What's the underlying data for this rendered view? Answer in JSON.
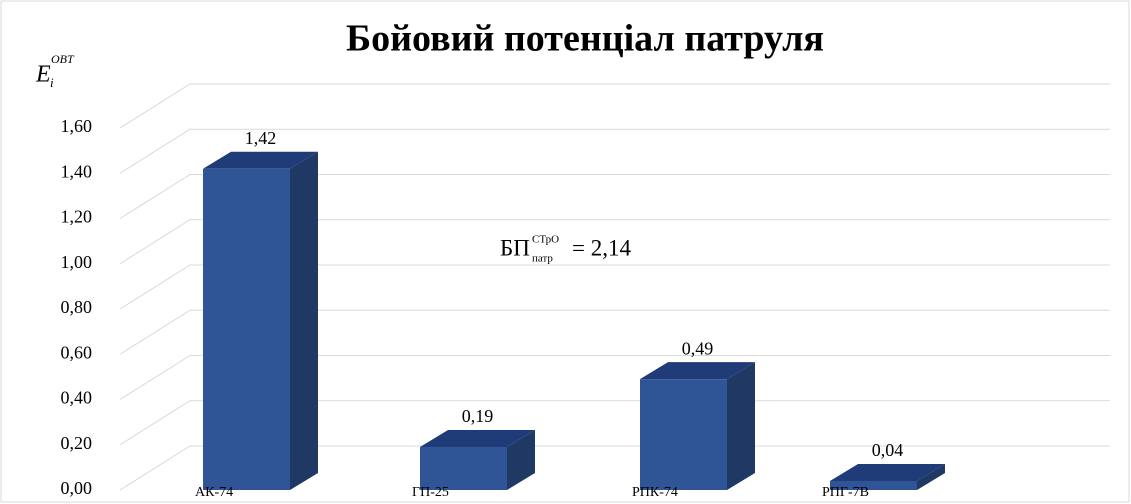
{
  "chart_data": {
    "type": "bar",
    "title": "Бойовий потенціал патруля",
    "ylabel": "E",
    "ylabel_sub": "i",
    "ylabel_sup": "OBT",
    "annotation": {
      "main": "БП",
      "sup": "СТрО",
      "sub": "патр",
      "rest": "= 2,14"
    },
    "categories": [
      "АК-74",
      "ГП-25",
      "РПК-74",
      "РПГ-7В"
    ],
    "values": [
      1.42,
      0.19,
      0.49,
      0.04
    ],
    "value_labels": [
      "1,42",
      "0,19",
      "0,49",
      "0,04"
    ],
    "color": "#2f5597",
    "ylim": [
      0,
      1.6
    ],
    "yticks": [
      {
        "value": 0,
        "label": "0,00"
      },
      {
        "value": 0.2,
        "label": "0,20"
      },
      {
        "value": 0.4,
        "label": "0,40"
      },
      {
        "value": 0.6,
        "label": "0,60"
      },
      {
        "value": 0.8,
        "label": "0,80"
      },
      {
        "value": 1.0,
        "label": "1,00"
      },
      {
        "value": 1.2,
        "label": "1,20"
      },
      {
        "value": 1.4,
        "label": "1,40"
      },
      {
        "value": 1.6,
        "label": "1,60"
      }
    ],
    "grid": true
  }
}
